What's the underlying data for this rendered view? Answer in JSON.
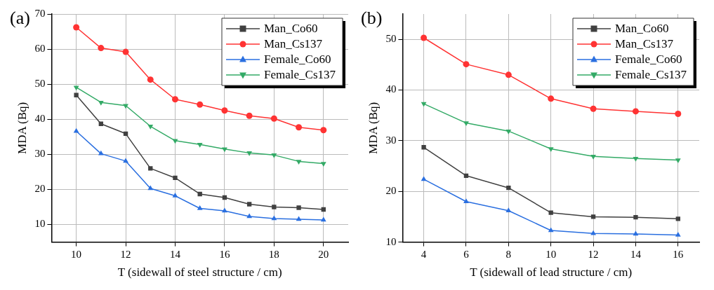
{
  "chart_data": [
    {
      "type": "line",
      "annotations": [
        "(a)"
      ],
      "xlabel": "T (sidewall of steel structure / cm)",
      "ylabel": "MDA (Bq)",
      "x": [
        10,
        11,
        12,
        13,
        14,
        15,
        16,
        17,
        18,
        19,
        20
      ],
      "xlim": [
        9,
        21
      ],
      "xticks": [
        10,
        12,
        14,
        16,
        18,
        20
      ],
      "ylim": [
        5,
        70
      ],
      "yticks": [
        10,
        20,
        30,
        40,
        50,
        60,
        70
      ],
      "grid": true,
      "legend": "top right",
      "line_style": "solid",
      "series": [
        {
          "name": "Man_Co60",
          "color": "#404040",
          "marker": "square",
          "values": [
            46.9,
            38.7,
            35.9,
            26.0,
            23.3,
            18.7,
            17.7,
            15.8,
            15.0,
            14.8,
            14.3
          ]
        },
        {
          "name": "Man_Cs137",
          "color": "#ff3333",
          "marker": "circle",
          "values": [
            66.2,
            60.3,
            59.2,
            51.3,
            45.7,
            44.2,
            42.5,
            41.0,
            40.2,
            37.7,
            36.9
          ]
        },
        {
          "name": "Female_Co60",
          "color": "#2a6fe0",
          "marker": "triangle",
          "values": [
            36.6,
            30.2,
            28.1,
            20.3,
            18.2,
            14.6,
            13.9,
            12.3,
            11.7,
            11.5,
            11.3
          ]
        },
        {
          "name": "Female_Cs137",
          "color": "#33aa66",
          "marker": "triangle-down",
          "values": [
            49.1,
            44.8,
            43.9,
            38.0,
            33.9,
            32.8,
            31.5,
            30.4,
            29.8,
            28.0,
            27.4
          ]
        }
      ]
    },
    {
      "type": "line",
      "annotations": [
        "(b)"
      ],
      "xlabel": "T (sidewall of lead structure / cm)",
      "ylabel": "MDA (Bq)",
      "x": [
        4,
        6,
        8,
        10,
        12,
        14,
        16
      ],
      "xlim": [
        3,
        17
      ],
      "xticks": [
        4,
        6,
        8,
        10,
        12,
        14,
        16
      ],
      "ylim": [
        10,
        55
      ],
      "yticks": [
        10,
        20,
        30,
        40,
        50
      ],
      "grid": true,
      "legend": "top right",
      "line_style": "solid",
      "series": [
        {
          "name": "Man_Co60",
          "color": "#404040",
          "marker": "square",
          "values": [
            28.7,
            23.1,
            20.7,
            15.8,
            15.0,
            14.9,
            14.6
          ]
        },
        {
          "name": "Man_Cs137",
          "color": "#ff3333",
          "marker": "circle",
          "values": [
            50.3,
            45.1,
            43.0,
            38.3,
            36.3,
            35.8,
            35.3
          ]
        },
        {
          "name": "Female_Co60",
          "color": "#2a6fe0",
          "marker": "triangle",
          "values": [
            22.4,
            18.0,
            16.2,
            12.3,
            11.7,
            11.6,
            11.4
          ]
        },
        {
          "name": "Female_Cs137",
          "color": "#33aa66",
          "marker": "triangle-down",
          "values": [
            37.3,
            33.5,
            31.9,
            28.4,
            26.9,
            26.5,
            26.2
          ]
        }
      ]
    }
  ]
}
